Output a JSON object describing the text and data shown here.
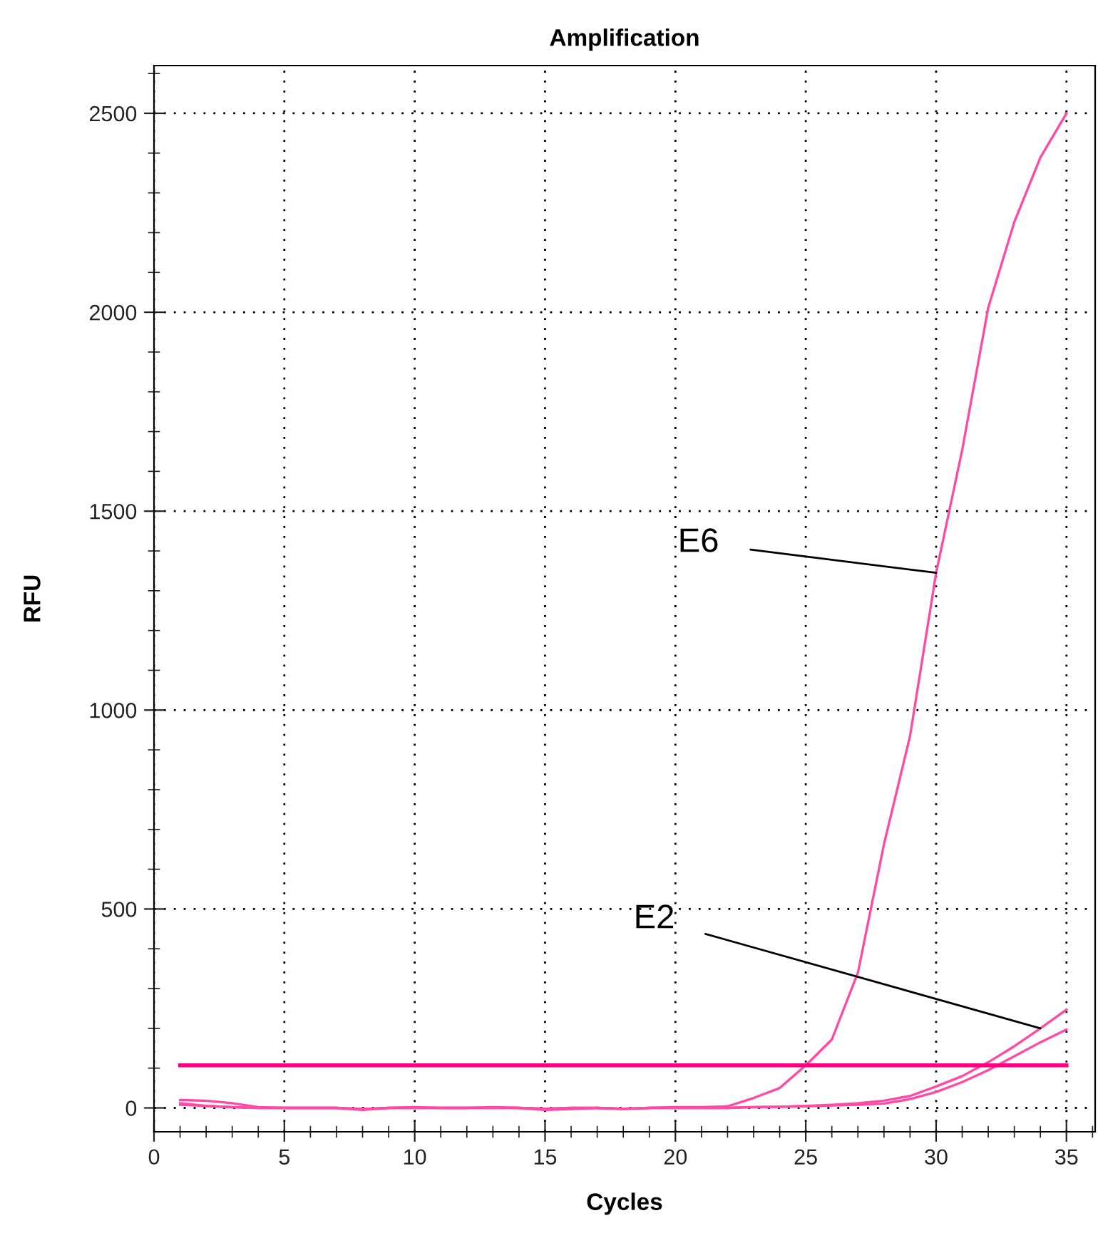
{
  "chart_data": {
    "type": "line",
    "title": "Amplification",
    "xlabel": "Cycles",
    "ylabel": "RFU",
    "x": [
      1,
      2,
      3,
      4,
      5,
      6,
      7,
      8,
      9,
      10,
      11,
      12,
      13,
      14,
      15,
      16,
      17,
      18,
      19,
      20,
      21,
      22,
      23,
      24,
      25,
      26,
      27,
      28,
      29,
      30,
      31,
      32,
      33,
      34,
      35
    ],
    "series": [
      {
        "color": "#ff4aa5",
        "values": [
          20,
          18,
          12,
          2,
          0,
          0,
          0,
          -5,
          0,
          2,
          0,
          0,
          2,
          0,
          -5,
          -3,
          0,
          -3,
          0,
          2,
          2,
          4,
          25,
          50,
          107,
          172,
          340,
          663,
          935,
          1345,
          1654,
          2012,
          2227,
          2389,
          2500
        ]
      },
      {
        "color": "#ff4aa5",
        "values": [
          12,
          5,
          2,
          0,
          0,
          0,
          0,
          -3,
          0,
          0,
          0,
          0,
          0,
          0,
          -2,
          0,
          0,
          -2,
          0,
          0,
          0,
          0,
          2,
          3,
          5,
          8,
          12,
          18,
          30,
          54,
          80,
          115,
          155,
          200,
          247
        ]
      },
      {
        "color": "#ff4aa5",
        "values": [
          8,
          5,
          2,
          0,
          0,
          0,
          0,
          -3,
          0,
          0,
          0,
          0,
          0,
          0,
          -2,
          0,
          0,
          -2,
          0,
          0,
          0,
          0,
          2,
          3,
          4,
          6,
          8,
          11,
          22,
          40,
          65,
          95,
          130,
          165,
          197
        ]
      }
    ],
    "ref_lines": [
      {
        "axis": "y",
        "value": 107,
        "color": "#ff0080"
      }
    ],
    "annotations": [
      {
        "text": "E6",
        "x": 30,
        "y": 1345
      },
      {
        "text": "E2",
        "x": 34,
        "y": 200
      }
    ],
    "xlim": [
      0,
      36.1
    ],
    "xticks": [
      0,
      5,
      10,
      15,
      20,
      25,
      30,
      35
    ],
    "ylim": [
      -60,
      2620
    ],
    "yticks": [
      0,
      500,
      1000,
      1500,
      2000,
      2500
    ],
    "grid": true,
    "line_style": "solid",
    "marker": "none"
  }
}
